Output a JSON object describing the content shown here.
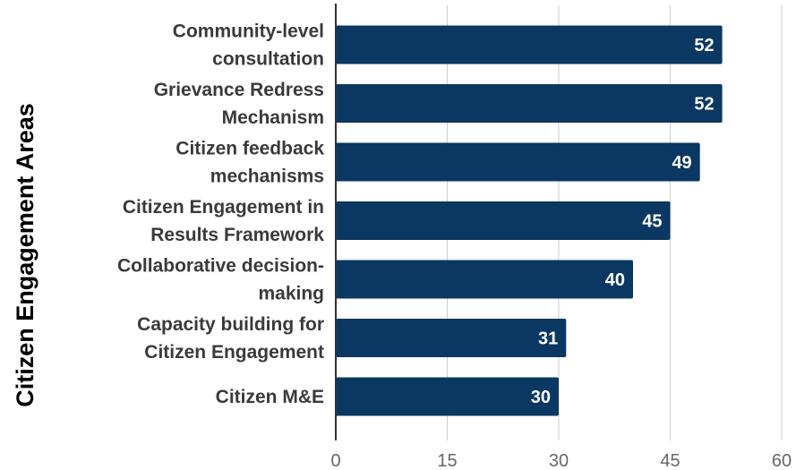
{
  "chart_data": {
    "type": "bar",
    "orientation": "horizontal",
    "title": "",
    "ylabel": "Citizen Engagement Areas",
    "xlabel": "",
    "categories": [
      [
        "Community-level",
        "consultation"
      ],
      [
        "Grievance Redress",
        "Mechanism"
      ],
      [
        "Citizen feedback",
        "mechanisms"
      ],
      [
        "Citizen Engagement in",
        "Results Framework"
      ],
      [
        "Collaborative decision-",
        "making"
      ],
      [
        "Capacity building for",
        "Citizen Engagement"
      ],
      [
        "Citizen M&E"
      ]
    ],
    "values": [
      52,
      52,
      49,
      45,
      40,
      31,
      30
    ],
    "xlim": [
      0,
      60
    ],
    "xticks": [
      0,
      15,
      30,
      45,
      60
    ],
    "grid": "vertical",
    "legend": "none",
    "colors": {
      "bar": "#0b3763",
      "grid": "#cccccc",
      "axis": "#333333",
      "category_text": "#3a3a3a",
      "tick_text": "#666666",
      "value_text": "#ffffff"
    }
  }
}
